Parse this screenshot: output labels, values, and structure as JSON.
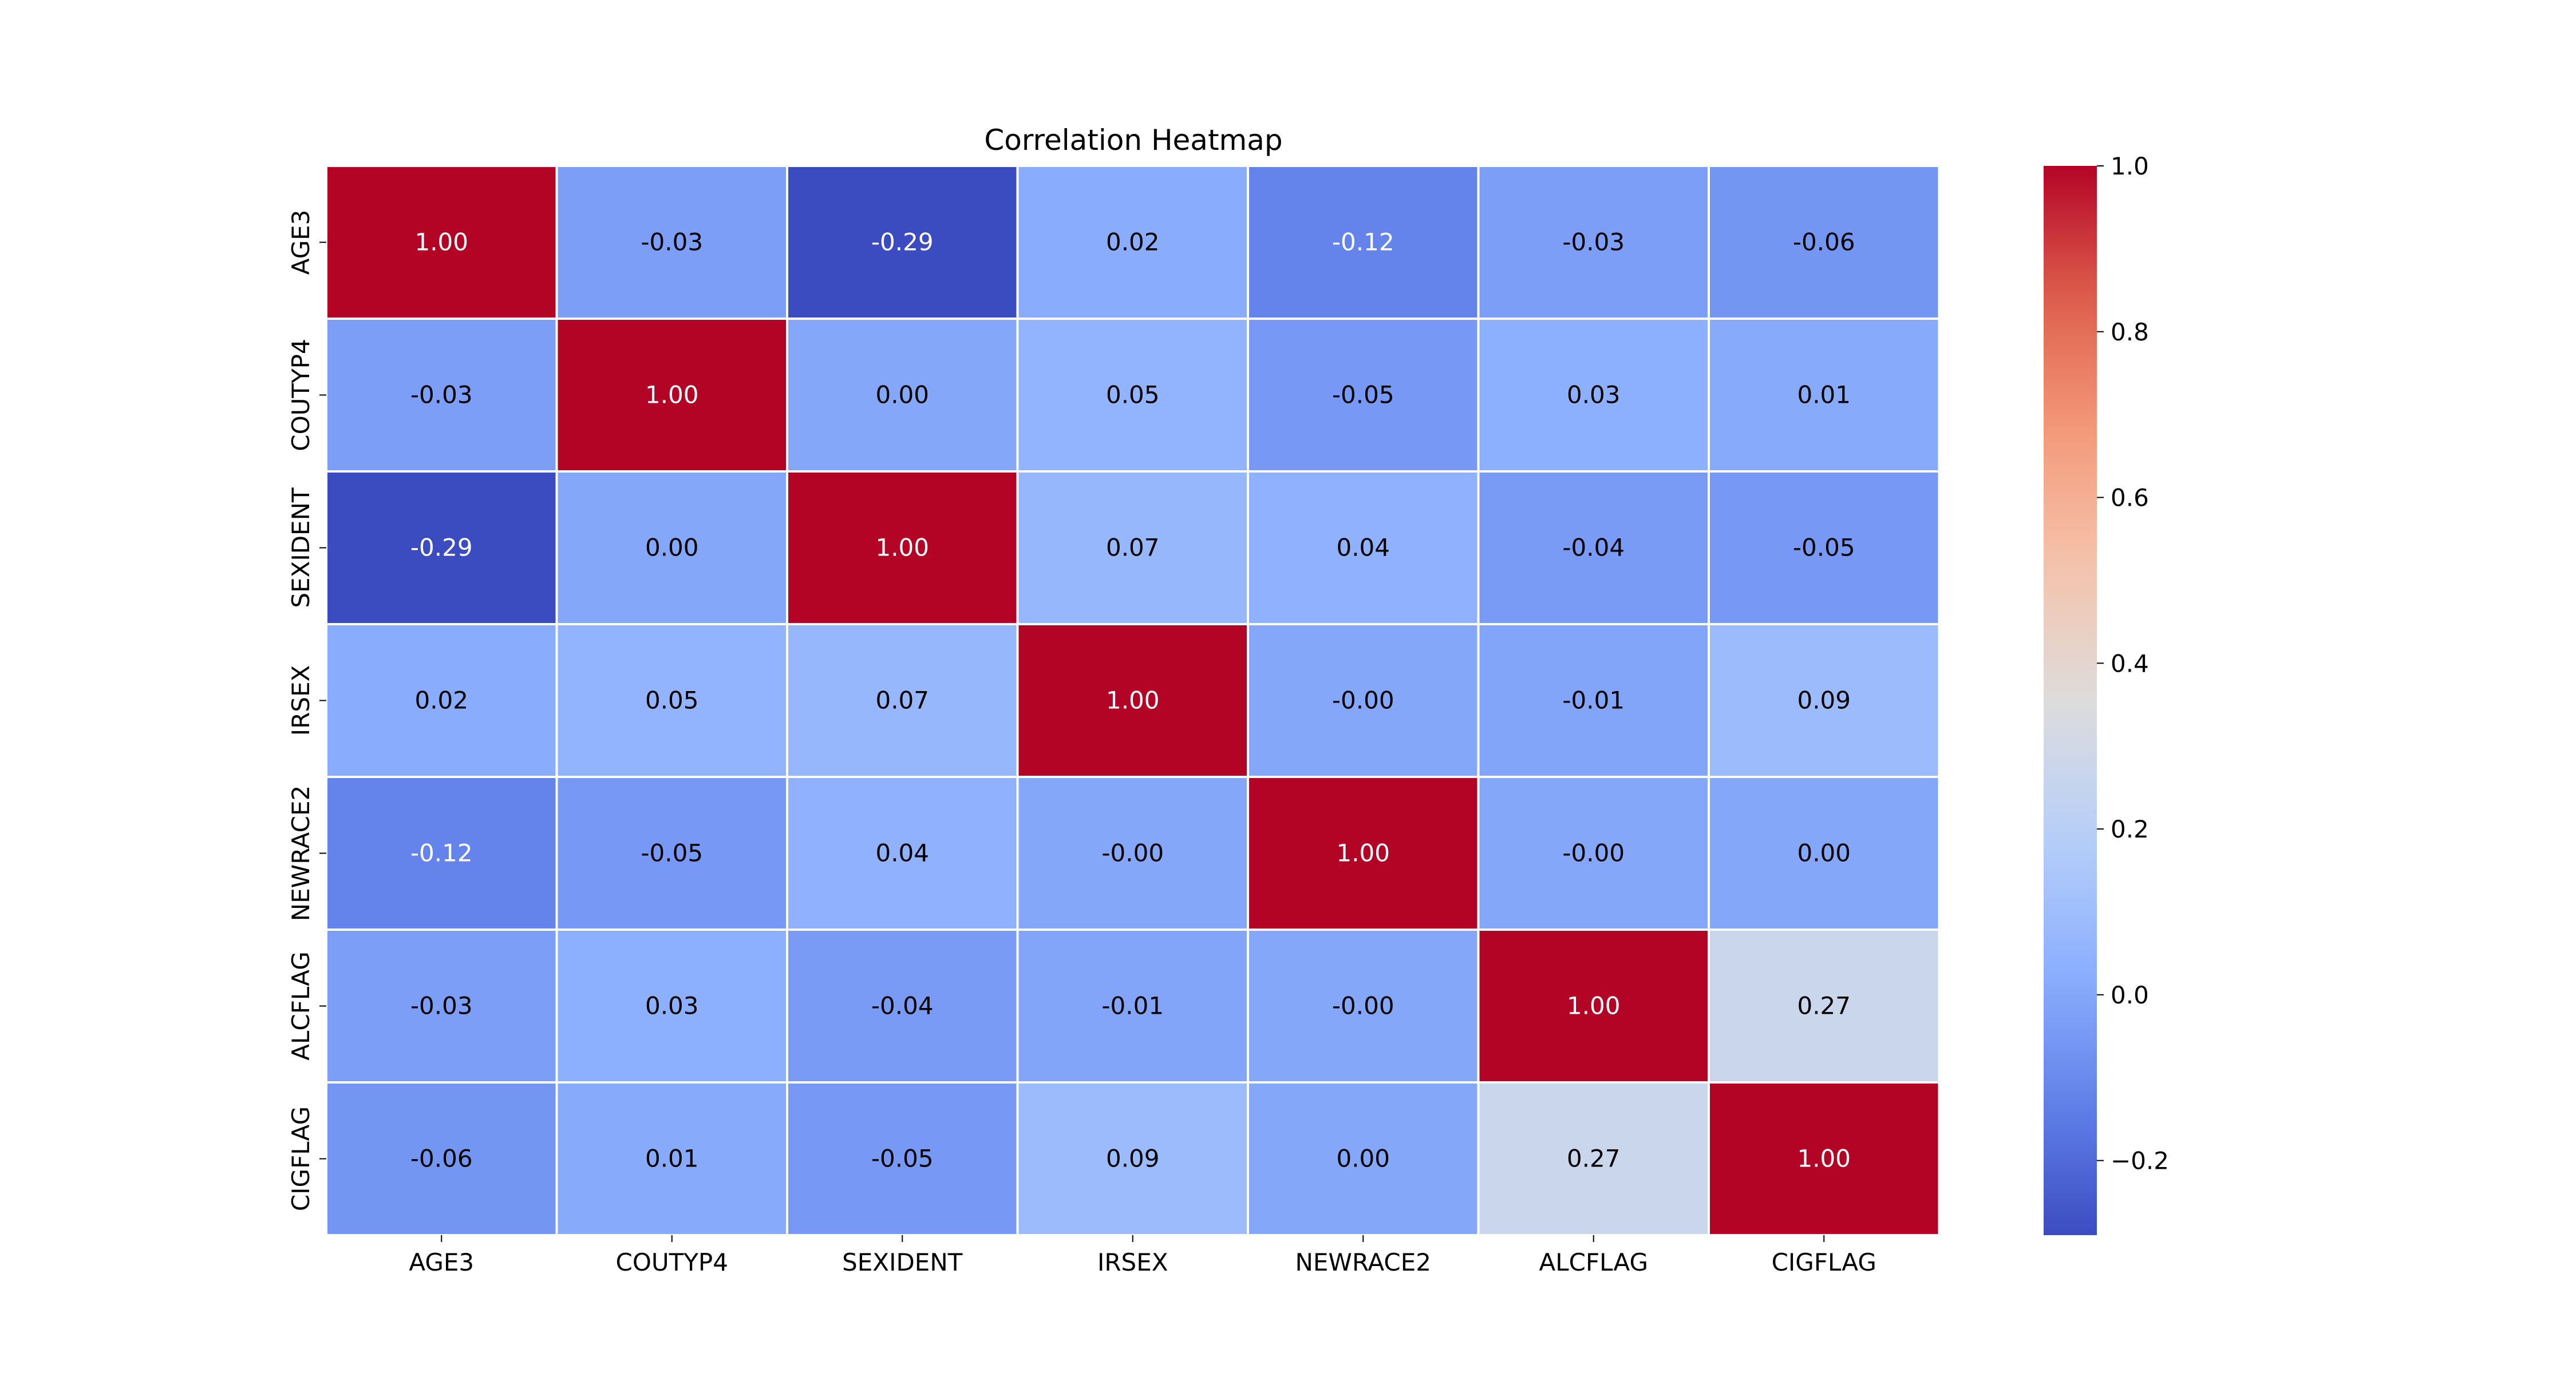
{
  "chart_data": {
    "type": "heatmap",
    "title": "Correlation Heatmap",
    "xlabel": "",
    "ylabel": "",
    "x_categories": [
      "AGE3",
      "COUTYP4",
      "SEXIDENT",
      "IRSEX",
      "NEWRACE2",
      "ALCFLAG",
      "CIGFLAG"
    ],
    "y_categories": [
      "AGE3",
      "COUTYP4",
      "SEXIDENT",
      "IRSEX",
      "NEWRACE2",
      "ALCFLAG",
      "CIGFLAG"
    ],
    "values": [
      [
        1.0,
        -0.03,
        -0.29,
        0.02,
        -0.12,
        -0.03,
        -0.06
      ],
      [
        -0.03,
        1.0,
        0.0,
        0.05,
        -0.05,
        0.03,
        0.01
      ],
      [
        -0.29,
        0.0,
        1.0,
        0.07,
        0.04,
        -0.04,
        -0.05
      ],
      [
        0.02,
        0.05,
        0.07,
        1.0,
        -0.0,
        -0.01,
        0.09
      ],
      [
        -0.12,
        -0.05,
        0.04,
        -0.0,
        1.0,
        -0.0,
        0.0
      ],
      [
        -0.03,
        0.03,
        -0.04,
        -0.01,
        -0.0,
        1.0,
        0.27
      ],
      [
        -0.06,
        0.01,
        -0.05,
        0.09,
        0.0,
        0.27,
        1.0
      ]
    ],
    "value_format": "2 decimals",
    "colormap": "coolwarm",
    "color_range": [
      -0.29,
      1.0
    ],
    "colorbar_ticks": [
      -0.2,
      0.0,
      0.2,
      0.4,
      0.6,
      0.8,
      1.0
    ],
    "colorbar_tick_labels": [
      "−0.2",
      "0.0",
      "0.2",
      "0.4",
      "0.6",
      "0.8",
      "1.0"
    ],
    "grid": true,
    "grid_color": "#ffffff",
    "colorbar_position": "right"
  }
}
